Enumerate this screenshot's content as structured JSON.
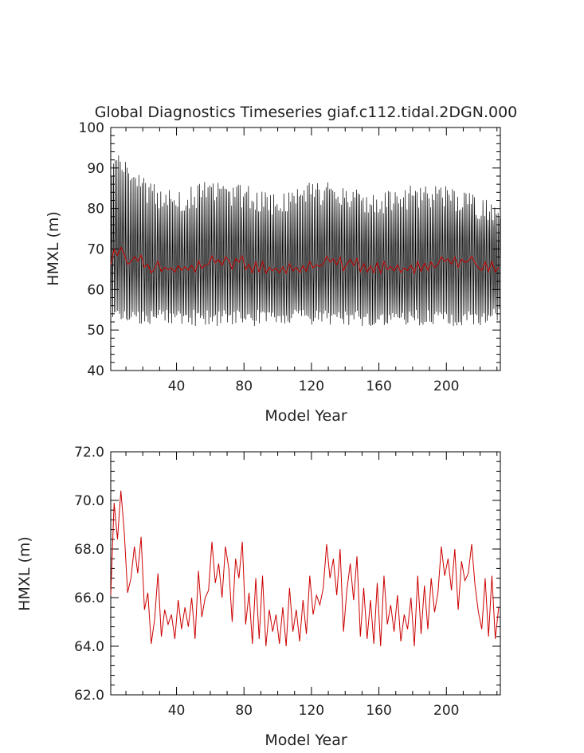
{
  "chart_data": [
    {
      "type": "line",
      "title": "Global Diagnostics Timeseries giaf.c112.tidal.2DGN.000",
      "xlabel": "Model Year",
      "ylabel": "HMXL (m)",
      "xlim": [
        1,
        232
      ],
      "ylim": [
        40,
        100
      ],
      "xticks": [
        40,
        80,
        120,
        160,
        200
      ],
      "yticks": [
        40,
        50,
        60,
        70,
        80,
        90,
        100
      ],
      "ytick_labels": [
        "40",
        "50",
        "60",
        "70",
        "80",
        "90",
        "100"
      ],
      "grid": false,
      "series": [
        {
          "color": "#000000",
          "description_monthly": "monthly values, seasonal cycle",
          "seasonal_max_range": [
            78,
            93
          ],
          "seasonal_min_range": [
            50,
            56
          ],
          "values_annual_envelope": {
            "x": [
              1,
              10,
              20,
              30,
              40,
              60,
              80,
              100,
              120,
              140,
              160,
              180,
              200,
              220,
              232
            ],
            "upper": [
              91,
              90,
              85,
              82,
              82,
              84,
              83,
              81,
              84,
              83,
              81,
              83,
              83,
              80,
              80
            ],
            "lower": [
              54,
              53,
              53,
              53,
              53,
              53,
              53,
              53,
              53,
              53,
              53,
              53,
              53,
              53,
              54
            ]
          }
        },
        {
          "color": "#cc0000",
          "values_ref": "annual"
        }
      ]
    },
    {
      "type": "line",
      "title": "",
      "xlabel": "Model Year",
      "ylabel": "HMXL (m)",
      "xlim": [
        1,
        232
      ],
      "ylim": [
        62,
        72
      ],
      "xticks": [
        40,
        80,
        120,
        160,
        200
      ],
      "yticks": [
        62,
        64,
        66,
        68,
        70,
        72
      ],
      "ytick_labels": [
        "62.0",
        "64.0",
        "66.0",
        "68.0",
        "70.0",
        "72.0"
      ],
      "grid": false,
      "series": [
        {
          "color": "#cc0000",
          "x": [
            1,
            3,
            5,
            7,
            9,
            11,
            13,
            15,
            17,
            19,
            21,
            23,
            25,
            27,
            29,
            31,
            33,
            35,
            37,
            39,
            41,
            43,
            45,
            47,
            49,
            51,
            53,
            55,
            57,
            59,
            61,
            63,
            65,
            67,
            69,
            71,
            73,
            75,
            77,
            79,
            81,
            83,
            85,
            87,
            89,
            91,
            93,
            95,
            97,
            99,
            101,
            103,
            105,
            107,
            109,
            111,
            113,
            115,
            117,
            119,
            121,
            123,
            125,
            127,
            129,
            131,
            133,
            135,
            137,
            139,
            141,
            143,
            145,
            147,
            149,
            151,
            153,
            155,
            157,
            159,
            161,
            163,
            165,
            167,
            169,
            171,
            173,
            175,
            177,
            179,
            181,
            183,
            185,
            187,
            189,
            191,
            193,
            195,
            197,
            199,
            201,
            203,
            205,
            207,
            209,
            211,
            213,
            215,
            217,
            219,
            221,
            223,
            225,
            227,
            229,
            231
          ],
          "y": [
            66.1,
            69.9,
            68.4,
            70.4,
            68.7,
            66.2,
            66.8,
            68.1,
            67.0,
            68.5,
            65.5,
            66.2,
            64.1,
            65.1,
            67.0,
            64.4,
            65.5,
            64.9,
            65.3,
            64.3,
            65.9,
            64.7,
            65.6,
            64.8,
            66.0,
            64.3,
            67.1,
            65.2,
            66.0,
            66.3,
            68.3,
            66.6,
            67.4,
            66.0,
            68.1,
            67.2,
            65.0,
            67.6,
            66.8,
            68.3,
            64.9,
            66.2,
            64.1,
            66.8,
            64.3,
            66.9,
            64.0,
            65.5,
            64.6,
            65.3,
            64.1,
            65.6,
            64.0,
            66.4,
            64.6,
            65.5,
            64.2,
            65.9,
            64.5,
            66.9,
            65.3,
            66.1,
            65.7,
            66.4,
            68.2,
            66.8,
            67.6,
            66.1,
            68.0,
            64.6,
            66.3,
            67.4,
            65.9,
            67.7,
            64.4,
            66.4,
            64.3,
            65.9,
            64.1,
            66.6,
            64.0,
            66.9,
            64.9,
            65.7,
            64.6,
            66.1,
            64.2,
            65.3,
            64.7,
            66.0,
            64.0,
            66.9,
            64.5,
            66.5,
            64.7,
            66.8,
            65.4,
            66.2,
            68.1,
            66.9,
            67.6,
            66.3,
            68.0,
            65.5,
            67.5,
            66.7,
            67.0,
            68.2,
            66.5,
            65.4,
            64.7,
            66.8,
            64.4,
            66.9,
            64.3,
            65.6
          ]
        }
      ]
    }
  ]
}
